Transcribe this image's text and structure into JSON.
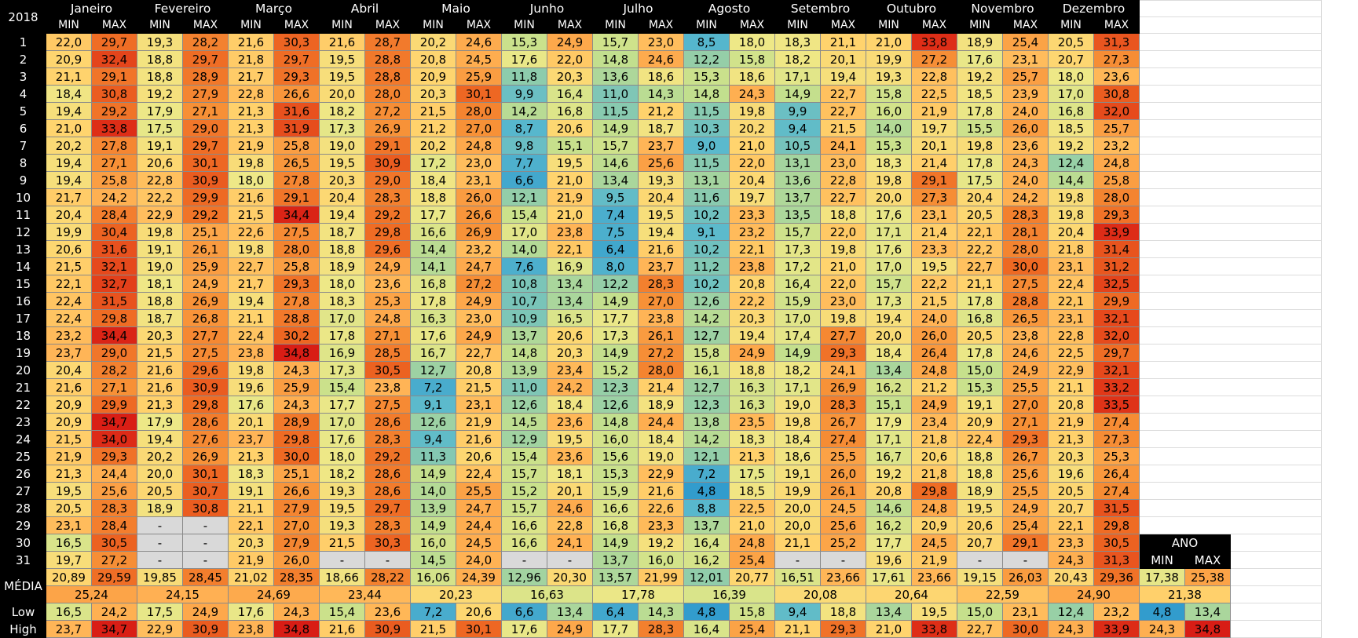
{
  "year": "2018",
  "min_label": "MIN",
  "max_label": "MAX",
  "months": [
    "Janeiro",
    "Fevereiro",
    "Março",
    "Abril",
    "Maio",
    "Junho",
    "Julho",
    "Agosto",
    "Setembro",
    "Outubro",
    "Novembro",
    "Dezembro"
  ],
  "rows": [
    {
      "day": "1",
      "vals": [
        "22,0",
        "29,7",
        "19,3",
        "28,2",
        "21,6",
        "30,3",
        "21,6",
        "28,7",
        "20,2",
        "24,6",
        "15,3",
        "24,9",
        "15,7",
        "23,0",
        "8,5",
        "18,0",
        "18,3",
        "21,1",
        "21,0",
        "33,8",
        "18,9",
        "25,4",
        "20,5",
        "31,3"
      ]
    },
    {
      "day": "2",
      "vals": [
        "20,9",
        "32,4",
        "18,8",
        "29,7",
        "21,8",
        "29,7",
        "19,5",
        "28,8",
        "20,8",
        "24,5",
        "17,6",
        "22,0",
        "14,8",
        "24,6",
        "12,2",
        "15,8",
        "18,2",
        "20,1",
        "19,9",
        "27,2",
        "17,6",
        "23,1",
        "20,7",
        "27,3"
      ]
    },
    {
      "day": "3",
      "vals": [
        "21,1",
        "29,1",
        "18,8",
        "28,9",
        "21,7",
        "29,3",
        "19,5",
        "28,8",
        "20,9",
        "25,9",
        "11,8",
        "20,3",
        "13,6",
        "18,6",
        "15,3",
        "18,6",
        "17,1",
        "19,4",
        "19,3",
        "22,8",
        "19,2",
        "25,7",
        "18,0",
        "23,6"
      ]
    },
    {
      "day": "4",
      "vals": [
        "18,4",
        "30,8",
        "19,2",
        "27,9",
        "22,8",
        "26,6",
        "20,0",
        "28,0",
        "20,3",
        "30,1",
        "9,9",
        "16,4",
        "11,0",
        "14,3",
        "14,8",
        "24,3",
        "14,9",
        "22,7",
        "15,8",
        "22,5",
        "18,5",
        "23,9",
        "17,0",
        "30,8"
      ]
    },
    {
      "day": "5",
      "vals": [
        "19,4",
        "29,2",
        "17,9",
        "27,1",
        "21,3",
        "31,6",
        "18,2",
        "27,2",
        "21,5",
        "28,0",
        "14,2",
        "16,8",
        "11,5",
        "21,2",
        "11,5",
        "19,8",
        "9,9",
        "22,7",
        "16,0",
        "21,9",
        "17,8",
        "24,0",
        "16,8",
        "32,0"
      ]
    },
    {
      "day": "6",
      "vals": [
        "21,0",
        "33,8",
        "17,5",
        "29,0",
        "21,3",
        "31,9",
        "17,3",
        "26,9",
        "21,2",
        "27,0",
        "8,7",
        "20,6",
        "14,9",
        "18,7",
        "10,3",
        "20,2",
        "9,4",
        "21,5",
        "14,0",
        "19,7",
        "15,5",
        "26,0",
        "18,5",
        "25,7"
      ]
    },
    {
      "day": "7",
      "vals": [
        "20,2",
        "27,8",
        "19,1",
        "29,7",
        "21,9",
        "25,8",
        "19,0",
        "29,1",
        "20,2",
        "24,8",
        "9,8",
        "15,1",
        "15,7",
        "23,7",
        "9,0",
        "21,0",
        "10,5",
        "24,1",
        "15,3",
        "20,1",
        "19,8",
        "23,6",
        "19,2",
        "23,2"
      ]
    },
    {
      "day": "8",
      "vals": [
        "19,4",
        "27,1",
        "20,6",
        "30,1",
        "19,8",
        "26,5",
        "19,5",
        "30,9",
        "17,2",
        "23,0",
        "7,7",
        "19,5",
        "14,6",
        "25,6",
        "11,5",
        "22,0",
        "13,1",
        "23,0",
        "18,3",
        "21,4",
        "17,8",
        "24,3",
        "12,4",
        "24,8"
      ]
    },
    {
      "day": "9",
      "vals": [
        "19,4",
        "25,8",
        "22,8",
        "30,9",
        "18,0",
        "27,8",
        "20,3",
        "29,0",
        "18,4",
        "23,1",
        "6,6",
        "21,0",
        "13,4",
        "19,3",
        "13,1",
        "20,4",
        "13,6",
        "22,8",
        "19,8",
        "29,1",
        "17,5",
        "24,0",
        "14,4",
        "25,8"
      ]
    },
    {
      "day": "10",
      "vals": [
        "21,7",
        "24,2",
        "22,2",
        "29,9",
        "21,6",
        "29,1",
        "20,4",
        "28,3",
        "18,8",
        "26,0",
        "12,1",
        "21,9",
        "9,5",
        "20,4",
        "11,6",
        "19,7",
        "13,7",
        "22,7",
        "20,0",
        "27,3",
        "20,4",
        "24,2",
        "19,8",
        "28,0"
      ]
    },
    {
      "day": "11",
      "vals": [
        "20,4",
        "28,4",
        "22,9",
        "29,2",
        "21,5",
        "34,4",
        "19,4",
        "29,2",
        "17,7",
        "26,6",
        "15,4",
        "21,0",
        "7,4",
        "19,5",
        "10,2",
        "23,3",
        "13,5",
        "18,8",
        "17,6",
        "23,1",
        "20,5",
        "28,3",
        "19,8",
        "29,3"
      ]
    },
    {
      "day": "12",
      "vals": [
        "19,9",
        "30,4",
        "19,8",
        "25,1",
        "22,6",
        "27,5",
        "18,7",
        "29,8",
        "16,6",
        "26,9",
        "17,0",
        "23,8",
        "7,5",
        "19,4",
        "9,1",
        "23,2",
        "15,7",
        "22,0",
        "17,1",
        "21,4",
        "22,1",
        "28,1",
        "20,4",
        "33,9"
      ]
    },
    {
      "day": "13",
      "vals": [
        "20,6",
        "31,6",
        "19,1",
        "26,1",
        "19,8",
        "28,0",
        "18,8",
        "29,6",
        "14,4",
        "23,2",
        "14,0",
        "22,1",
        "6,4",
        "21,6",
        "10,2",
        "22,1",
        "17,3",
        "19,8",
        "17,6",
        "23,3",
        "22,2",
        "28,0",
        "21,8",
        "31,4"
      ]
    },
    {
      "day": "14",
      "vals": [
        "21,5",
        "32,1",
        "19,0",
        "25,9",
        "22,7",
        "25,8",
        "18,9",
        "24,9",
        "14,1",
        "24,7",
        "7,6",
        "16,9",
        "8,0",
        "23,7",
        "11,2",
        "23,8",
        "17,2",
        "21,0",
        "17,0",
        "19,5",
        "22,7",
        "30,0",
        "23,1",
        "31,2"
      ]
    },
    {
      "day": "15",
      "vals": [
        "22,1",
        "32,7",
        "18,1",
        "24,9",
        "21,7",
        "29,3",
        "18,0",
        "23,6",
        "16,8",
        "27,2",
        "10,8",
        "13,4",
        "12,2",
        "28,3",
        "10,2",
        "20,8",
        "16,4",
        "22,0",
        "15,7",
        "22,2",
        "21,1",
        "27,5",
        "22,4",
        "32,5"
      ]
    },
    {
      "day": "16",
      "vals": [
        "22,4",
        "31,5",
        "18,8",
        "26,9",
        "19,4",
        "27,8",
        "18,3",
        "25,3",
        "17,8",
        "24,9",
        "10,7",
        "13,4",
        "14,9",
        "27,0",
        "12,6",
        "22,2",
        "15,9",
        "23,0",
        "17,3",
        "21,5",
        "17,8",
        "28,8",
        "22,1",
        "29,9"
      ]
    },
    {
      "day": "17",
      "vals": [
        "22,4",
        "29,8",
        "18,7",
        "26,8",
        "21,1",
        "28,8",
        "17,0",
        "24,8",
        "16,3",
        "23,0",
        "10,9",
        "16,5",
        "17,7",
        "23,8",
        "14,2",
        "20,3",
        "17,0",
        "19,8",
        "19,4",
        "24,0",
        "16,8",
        "26,5",
        "23,1",
        "32,1"
      ]
    },
    {
      "day": "18",
      "vals": [
        "23,2",
        "34,4",
        "20,3",
        "27,7",
        "22,4",
        "30,2",
        "17,8",
        "27,1",
        "17,6",
        "24,9",
        "13,7",
        "20,6",
        "17,3",
        "26,1",
        "12,7",
        "19,4",
        "17,4",
        "27,7",
        "20,0",
        "26,0",
        "20,5",
        "23,8",
        "22,8",
        "32,0"
      ]
    },
    {
      "day": "19",
      "vals": [
        "23,7",
        "29,0",
        "21,5",
        "27,5",
        "23,8",
        "34,8",
        "16,9",
        "28,5",
        "16,7",
        "22,7",
        "14,8",
        "20,3",
        "14,9",
        "27,2",
        "15,8",
        "24,9",
        "14,9",
        "29,3",
        "18,4",
        "26,4",
        "17,8",
        "24,6",
        "22,5",
        "29,7"
      ]
    },
    {
      "day": "20",
      "vals": [
        "20,4",
        "28,2",
        "21,6",
        "29,6",
        "19,8",
        "24,3",
        "17,3",
        "30,5",
        "12,7",
        "20,8",
        "13,9",
        "23,4",
        "15,2",
        "28,0",
        "16,1",
        "18,8",
        "18,2",
        "24,1",
        "13,4",
        "24,8",
        "15,0",
        "24,9",
        "22,9",
        "32,1"
      ]
    },
    {
      "day": "21",
      "vals": [
        "21,6",
        "27,1",
        "21,6",
        "30,9",
        "19,6",
        "25,9",
        "15,4",
        "23,8",
        "7,2",
        "21,5",
        "11,0",
        "24,2",
        "12,3",
        "21,4",
        "12,7",
        "16,3",
        "17,1",
        "26,9",
        "16,2",
        "21,2",
        "15,3",
        "25,5",
        "21,1",
        "33,2"
      ]
    },
    {
      "day": "22",
      "vals": [
        "20,9",
        "29,9",
        "21,3",
        "29,8",
        "17,6",
        "24,3",
        "17,7",
        "27,5",
        "9,1",
        "23,1",
        "12,6",
        "18,4",
        "12,6",
        "18,9",
        "12,3",
        "16,3",
        "19,0",
        "28,3",
        "15,1",
        "24,9",
        "19,1",
        "27,0",
        "20,8",
        "33,5"
      ]
    },
    {
      "day": "23",
      "vals": [
        "20,9",
        "34,7",
        "17,9",
        "28,6",
        "20,1",
        "28,9",
        "17,0",
        "28,6",
        "12,6",
        "21,9",
        "14,5",
        "23,6",
        "14,8",
        "24,4",
        "13,8",
        "23,5",
        "19,8",
        "26,7",
        "17,9",
        "23,4",
        "20,9",
        "27,1",
        "21,9",
        "27,4"
      ]
    },
    {
      "day": "24",
      "vals": [
        "21,5",
        "34,0",
        "19,4",
        "27,6",
        "23,7",
        "29,8",
        "17,6",
        "28,3",
        "9,4",
        "21,6",
        "12,9",
        "19,5",
        "16,0",
        "18,4",
        "14,2",
        "18,3",
        "18,4",
        "27,4",
        "17,1",
        "21,8",
        "22,4",
        "29,3",
        "21,3",
        "27,3"
      ]
    },
    {
      "day": "25",
      "vals": [
        "21,9",
        "29,3",
        "20,2",
        "26,9",
        "21,3",
        "30,0",
        "18,0",
        "29,2",
        "11,3",
        "20,6",
        "15,4",
        "23,6",
        "15,6",
        "19,0",
        "12,1",
        "21,3",
        "18,6",
        "25,5",
        "16,7",
        "20,6",
        "18,8",
        "26,7",
        "20,3",
        "25,3"
      ]
    },
    {
      "day": "26",
      "vals": [
        "21,3",
        "24,4",
        "20,0",
        "30,1",
        "18,3",
        "25,1",
        "18,2",
        "28,6",
        "14,9",
        "22,4",
        "15,7",
        "18,1",
        "15,3",
        "22,9",
        "7,2",
        "17,5",
        "19,1",
        "26,0",
        "19,2",
        "21,8",
        "18,8",
        "25,6",
        "19,6",
        "26,4"
      ]
    },
    {
      "day": "27",
      "vals": [
        "19,5",
        "25,6",
        "20,5",
        "30,7",
        "19,1",
        "26,6",
        "19,3",
        "28,6",
        "14,0",
        "25,5",
        "15,2",
        "20,1",
        "15,9",
        "21,6",
        "4,8",
        "18,5",
        "19,9",
        "26,1",
        "20,8",
        "29,8",
        "18,9",
        "25,5",
        "20,5",
        "27,4"
      ]
    },
    {
      "day": "28",
      "vals": [
        "20,5",
        "28,3",
        "18,9",
        "30,8",
        "21,1",
        "27,9",
        "19,5",
        "29,7",
        "13,9",
        "24,7",
        "15,7",
        "24,6",
        "16,6",
        "22,6",
        "8,8",
        "22,5",
        "20,0",
        "24,5",
        "14,6",
        "24,8",
        "19,5",
        "24,9",
        "20,7",
        "31,5"
      ]
    },
    {
      "day": "29",
      "vals": [
        "23,1",
        "28,4",
        "-",
        "-",
        "22,1",
        "27,0",
        "19,3",
        "28,3",
        "14,9",
        "24,4",
        "16,6",
        "22,8",
        "16,8",
        "23,3",
        "13,7",
        "21,0",
        "20,0",
        "25,6",
        "16,2",
        "20,9",
        "20,6",
        "25,4",
        "22,1",
        "29,8"
      ]
    },
    {
      "day": "30",
      "vals": [
        "16,5",
        "30,5",
        "-",
        "-",
        "20,3",
        "27,9",
        "21,5",
        "30,3",
        "16,0",
        "24,5",
        "16,6",
        "24,1",
        "14,9",
        "19,2",
        "16,4",
        "24,8",
        "21,1",
        "25,2",
        "17,7",
        "24,5",
        "20,7",
        "29,1",
        "23,3",
        "30,5"
      ]
    },
    {
      "day": "31",
      "vals": [
        "19,7",
        "27,2",
        "-",
        "-",
        "21,9",
        "26,0",
        "-",
        "-",
        "14,5",
        "24,0",
        "-",
        "-",
        "13,7",
        "16,0",
        "16,2",
        "25,4",
        "-",
        "-",
        "19,6",
        "21,9",
        "-",
        "-",
        "24,3",
        "31,3"
      ]
    }
  ],
  "media": {
    "label": "MÉDIA",
    "vals": [
      "20,89",
      "29,59",
      "19,85",
      "28,45",
      "21,02",
      "28,35",
      "18,66",
      "28,22",
      "16,06",
      "24,39",
      "12,96",
      "20,30",
      "13,57",
      "21,99",
      "12,01",
      "20,77",
      "16,51",
      "23,66",
      "17,61",
      "23,66",
      "19,15",
      "26,03",
      "20,43",
      "29,36"
    ],
    "month_avg": [
      "25,24",
      "24,15",
      "24,69",
      "23,44",
      "20,23",
      "16,63",
      "17,78",
      "16,39",
      "20,08",
      "20,64",
      "22,59",
      "24,90"
    ],
    "ano_vals": [
      "17,38",
      "25,38"
    ],
    "ano_avg": "21,38"
  },
  "low": {
    "label": "Low",
    "vals": [
      "16,5",
      "24,2",
      "17,5",
      "24,9",
      "17,6",
      "24,3",
      "15,4",
      "23,6",
      "7,2",
      "20,6",
      "6,6",
      "13,4",
      "6,4",
      "14,3",
      "4,8",
      "15,8",
      "9,4",
      "18,8",
      "13,4",
      "19,5",
      "15,0",
      "23,1",
      "12,4",
      "23,2"
    ],
    "ano": [
      "4,8",
      "13,4"
    ]
  },
  "high": {
    "label": "High",
    "vals": [
      "23,7",
      "34,7",
      "22,9",
      "30,9",
      "23,8",
      "34,8",
      "21,6",
      "30,9",
      "21,5",
      "30,1",
      "17,6",
      "24,9",
      "17,7",
      "28,3",
      "16,4",
      "25,4",
      "21,1",
      "29,3",
      "21,0",
      "33,8",
      "22,7",
      "30,0",
      "24,3",
      "33,9"
    ],
    "ano": [
      "24,3",
      "34,8"
    ]
  },
  "ano_label": "ANO"
}
